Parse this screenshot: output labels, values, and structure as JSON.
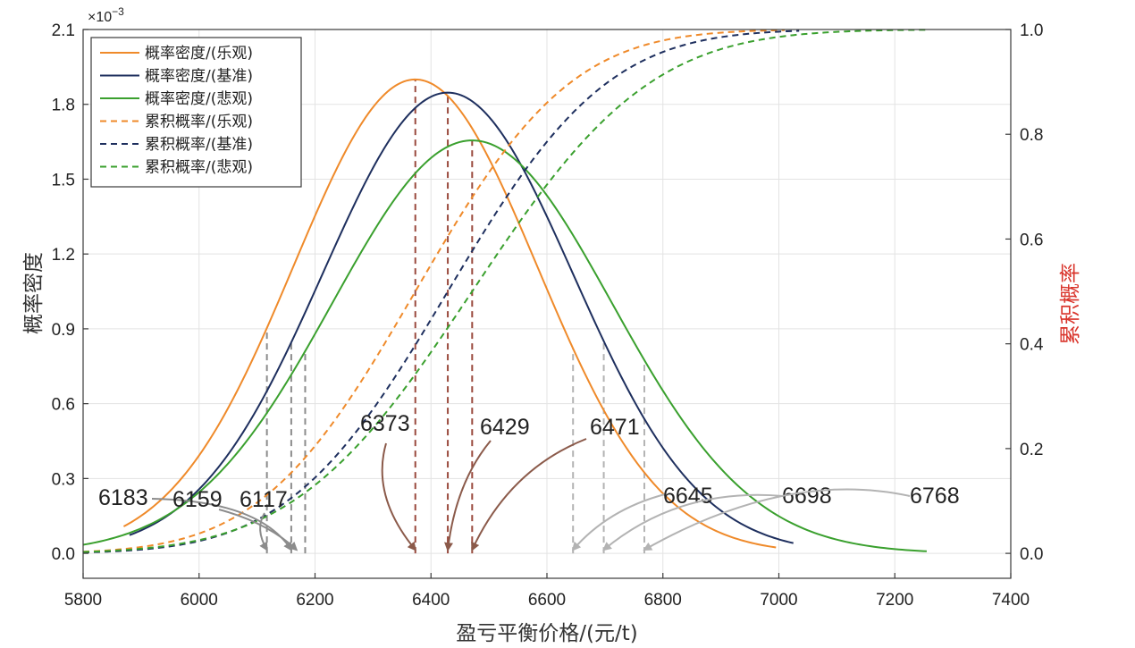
{
  "chart_data": {
    "type": "line",
    "xlabel": "盈亏平衡价格/(元/t)",
    "ylabel_left": "概率密度",
    "ylabel_right": "累积概率",
    "left_axis_multiplier": "×10",
    "left_axis_exponent": "−3",
    "xlim": [
      5800,
      7400
    ],
    "ylim_left": [
      -0.1,
      2.1
    ],
    "ylim_right": [
      -0.0476,
      1.0
    ],
    "x_ticks": [
      "5800",
      "6000",
      "6200",
      "6400",
      "6600",
      "6800",
      "7000",
      "7200",
      "7400"
    ],
    "y_left_ticks": [
      "0.0",
      "0.3",
      "0.6",
      "0.9",
      "1.2",
      "1.5",
      "1.8",
      "2.1"
    ],
    "y_right_ticks": [
      "0.0",
      "0.2",
      "0.4",
      "0.6",
      "0.8",
      "1.0"
    ],
    "grid": true,
    "legend_position": "top-left",
    "series": [
      {
        "name": "概率密度/(乐观)",
        "kind": "pdf",
        "color": "#ef8a2a",
        "dashed": false,
        "mean": 6373,
        "sd": 210,
        "x_range": [
          5870,
          6995
        ]
      },
      {
        "name": "概率密度/(基准)",
        "kind": "pdf",
        "color": "#1e2f5e",
        "dashed": false,
        "mean": 6429,
        "sd": 216,
        "x_range": [
          5880,
          7025
        ]
      },
      {
        "name": "概率密度/(悲观)",
        "kind": "pdf",
        "color": "#3aa02e",
        "dashed": false,
        "mean": 6471,
        "sd": 241,
        "x_range": [
          5800,
          7255
        ]
      },
      {
        "name": "累积概率/(乐观)",
        "kind": "cdf",
        "color": "#ef8a2a",
        "dashed": true,
        "mean": 6373,
        "sd": 210,
        "x_range": [
          5800,
          7010
        ]
      },
      {
        "name": "累积概率/(基准)",
        "kind": "cdf",
        "color": "#1e2f5e",
        "dashed": true,
        "mean": 6429,
        "sd": 216,
        "x_range": [
          5800,
          7035
        ]
      },
      {
        "name": "累积概率/(悲观)",
        "kind": "cdf",
        "color": "#3aa02e",
        "dashed": true,
        "mean": 6471,
        "sd": 241,
        "x_range": [
          5800,
          7255
        ]
      }
    ],
    "marker_lines": [
      {
        "x": 6117,
        "color": "#8c8c8c",
        "series": 0
      },
      {
        "x": 6159,
        "color": "#8c8c8c",
        "series": 1
      },
      {
        "x": 6183,
        "color": "#8c8c8c",
        "series": 2
      },
      {
        "x": 6373,
        "color": "#9a4a3e",
        "series": 0
      },
      {
        "x": 6429,
        "color": "#9a4a3e",
        "series": 1
      },
      {
        "x": 6471,
        "color": "#9a4a3e",
        "series": 2
      },
      {
        "x": 6645,
        "color": "#b3b3b3",
        "series": 0
      },
      {
        "x": 6698,
        "color": "#b3b3b3",
        "series": 1
      },
      {
        "x": 6768,
        "color": "#b3b3b3",
        "series": 2
      }
    ],
    "annotations": [
      {
        "label": "6183",
        "target_x": 6159,
        "color": "#8c8c8c"
      },
      {
        "label": "6159",
        "target_x": 6168,
        "color": "#8c8c8c"
      },
      {
        "label": "6117",
        "target_x": 6117,
        "color": "#8c8c8c"
      },
      {
        "label": "6373",
        "target_x": 6373,
        "color": "#8b5a4a"
      },
      {
        "label": "6429",
        "target_x": 6429,
        "color": "#8b5a4a"
      },
      {
        "label": "6471",
        "target_x": 6471,
        "color": "#8b5a4a"
      },
      {
        "label": "6645",
        "target_x": 6645,
        "color": "#b3b3b3"
      },
      {
        "label": "6698",
        "target_x": 6698,
        "color": "#b3b3b3"
      },
      {
        "label": "6768",
        "target_x": 6768,
        "color": "#b3b3b3"
      }
    ]
  }
}
